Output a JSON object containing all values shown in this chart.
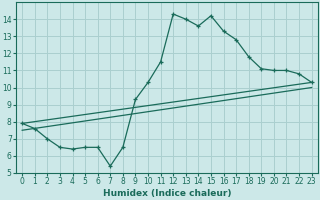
{
  "xlabel": "Humidex (Indice chaleur)",
  "bg_color": "#cce8e8",
  "grid_color": "#aacfcf",
  "line_color": "#1a6b5a",
  "xlim": [
    -0.5,
    23.5
  ],
  "ylim": [
    5,
    15
  ],
  "xticks": [
    0,
    1,
    2,
    3,
    4,
    5,
    6,
    7,
    8,
    9,
    10,
    11,
    12,
    13,
    14,
    15,
    16,
    17,
    18,
    19,
    20,
    21,
    22,
    23
  ],
  "yticks": [
    5,
    6,
    7,
    8,
    9,
    10,
    11,
    12,
    13,
    14
  ],
  "curve1_x": [
    0,
    1,
    2,
    3,
    4,
    5,
    6,
    7,
    8,
    9,
    10,
    11,
    12,
    13,
    14,
    15,
    16,
    17,
    18,
    19,
    20,
    21,
    22,
    23
  ],
  "curve1_y": [
    7.9,
    7.6,
    7.0,
    6.5,
    6.4,
    6.5,
    6.5,
    5.4,
    6.5,
    9.3,
    10.3,
    11.5,
    14.3,
    14.0,
    13.6,
    14.2,
    13.3,
    12.8,
    11.8,
    11.1,
    11.0,
    11.0,
    10.8,
    10.3
  ],
  "curve2_x": [
    0,
    23
  ],
  "curve2_y": [
    7.9,
    10.3
  ],
  "curve3_x": [
    0,
    23
  ],
  "curve3_y": [
    7.5,
    10.0
  ],
  "tick_fontsize": 5.5,
  "xlabel_fontsize": 6.5
}
